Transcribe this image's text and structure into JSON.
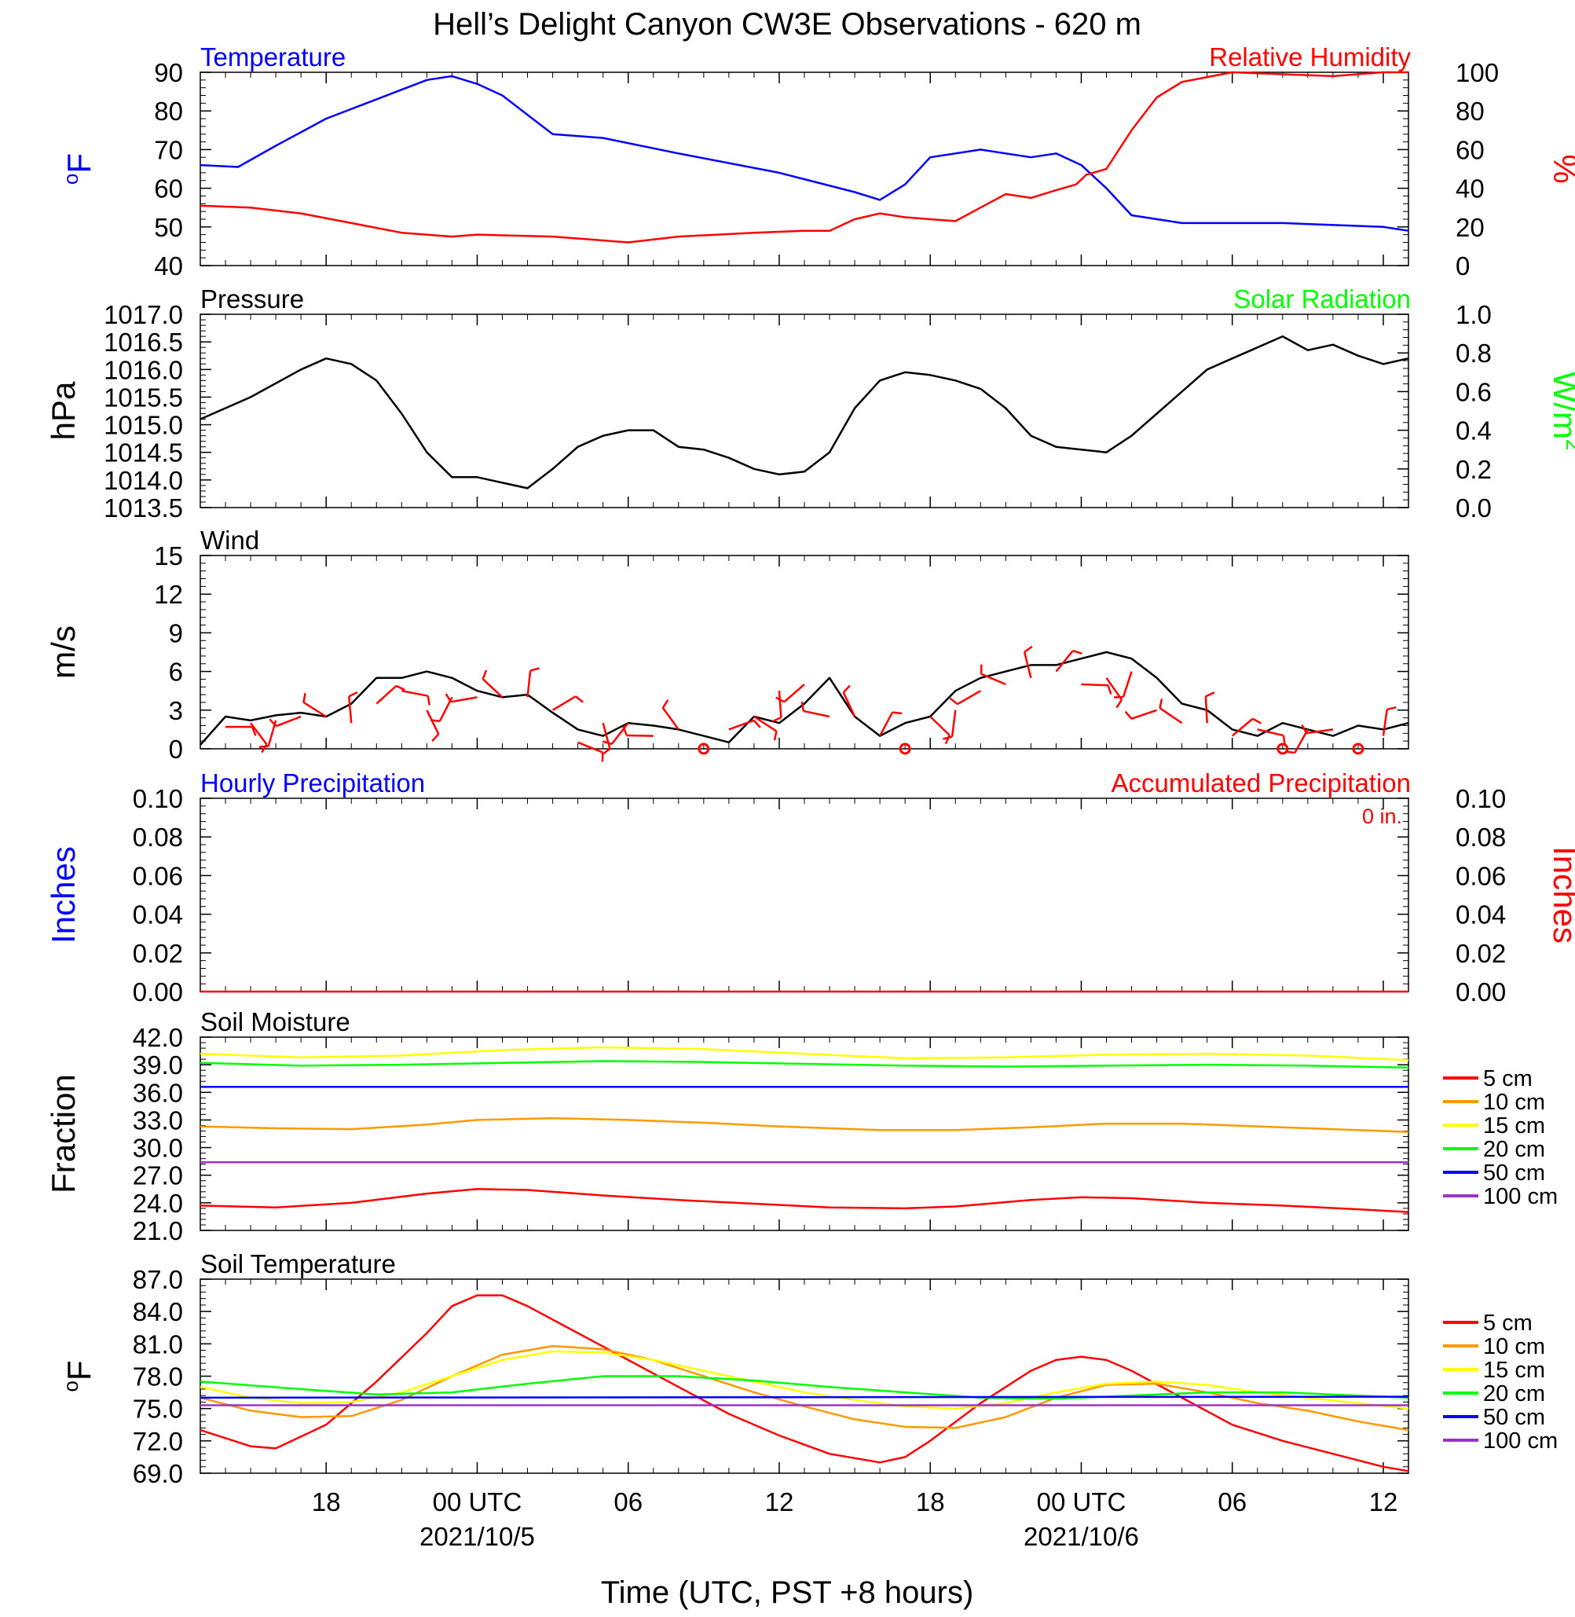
{
  "title": "Hell’s Delight Canyon CW3E Observations - 620 m",
  "xaxis": {
    "label": "Time (UTC, PST +8 hours)",
    "ticks": [
      {
        "h": 18,
        "label": "18"
      },
      {
        "h": 24,
        "label": "00 UTC",
        "date": "2021/10/5"
      },
      {
        "h": 30,
        "label": "06"
      },
      {
        "h": 36,
        "label": "12"
      },
      {
        "h": 42,
        "label": "18"
      },
      {
        "h": 48,
        "label": "00 UTC",
        "date": "2021/10/6"
      },
      {
        "h": 54,
        "label": "06"
      },
      {
        "h": 60,
        "label": "12"
      }
    ],
    "range_hours": [
      13,
      61
    ]
  },
  "chart_data": [
    {
      "panel": "temperature",
      "type": "line",
      "title_left": "Temperature",
      "title_right": "Relative Humidity",
      "ylabel_left": "oF",
      "ylabel_right": "%",
      "ylim_left": [
        40,
        90
      ],
      "ylim_right": [
        0,
        100
      ],
      "yticks_left": [
        "40",
        "50",
        "60",
        "70",
        "80",
        "90"
      ],
      "yticks_right": [
        "0",
        "20",
        "40",
        "60",
        "80",
        "100"
      ],
      "series": [
        {
          "name": "Temperature",
          "color": "#0000ff",
          "axis": "left",
          "x": [
            13,
            14.5,
            16,
            18,
            20,
            22,
            23,
            24,
            25,
            27,
            29,
            32,
            36,
            39,
            40,
            41,
            42,
            44,
            46,
            47,
            48,
            49,
            50,
            52,
            56,
            60,
            61
          ],
          "y": [
            66,
            65.5,
            71,
            78,
            83,
            88,
            89,
            87,
            84,
            74,
            73,
            69,
            64,
            59,
            57,
            61,
            68,
            70,
            68,
            69,
            66,
            60,
            53,
            51,
            51,
            50,
            49
          ]
        },
        {
          "name": "Relative Humidity",
          "color": "#ff0000",
          "axis": "right",
          "x": [
            13,
            15,
            17,
            19,
            21,
            23,
            24,
            27,
            30,
            32,
            35,
            37,
            38,
            39,
            40,
            41,
            42,
            43,
            44,
            45,
            46,
            47,
            47.8,
            48.2,
            49,
            50,
            51,
            52,
            54,
            56,
            58,
            60,
            61
          ],
          "y": [
            31,
            30,
            27,
            22,
            17,
            15,
            16,
            15,
            12,
            15,
            17,
            18,
            18,
            24,
            27,
            25,
            24,
            23,
            30,
            37,
            35,
            39,
            42,
            47,
            50,
            70,
            87,
            95,
            100,
            99,
            98,
            100,
            100
          ]
        }
      ]
    },
    {
      "panel": "pressure",
      "type": "line",
      "title_left": "Pressure",
      "title_right": "Solar Radiation",
      "ylabel_left": "hPa",
      "ylabel_right": "W/m2",
      "ylim_left": [
        1013.5,
        1017.0
      ],
      "ylim_right": [
        0.0,
        1.0
      ],
      "yticks_left": [
        "1013.5",
        "1014.0",
        "1014.5",
        "1015.0",
        "1015.5",
        "1016.0",
        "1016.5",
        "1017.0"
      ],
      "yticks_right": [
        "0.0",
        "0.2",
        "0.4",
        "0.6",
        "0.8",
        "1.0"
      ],
      "series": [
        {
          "name": "Pressure",
          "color": "#000000",
          "axis": "left",
          "x": [
            13,
            15,
            17,
            18,
            19,
            20,
            21,
            22,
            23,
            24,
            25,
            26,
            27,
            28,
            29,
            30,
            31,
            32,
            33,
            34,
            35,
            36,
            37,
            38,
            39,
            40,
            41,
            42,
            43,
            44,
            45,
            46,
            47,
            48,
            49,
            50,
            51,
            52,
            53,
            54,
            55,
            56,
            57,
            58,
            59,
            60,
            61
          ],
          "y": [
            1015.1,
            1015.5,
            1016.0,
            1016.2,
            1016.1,
            1015.8,
            1015.2,
            1014.5,
            1014.05,
            1014.05,
            1013.95,
            1013.85,
            1014.2,
            1014.6,
            1014.8,
            1014.9,
            1014.9,
            1014.6,
            1014.55,
            1014.4,
            1014.2,
            1014.1,
            1014.15,
            1014.5,
            1015.3,
            1015.8,
            1015.95,
            1015.9,
            1015.8,
            1015.65,
            1015.3,
            1014.8,
            1014.6,
            1014.55,
            1014.5,
            1014.8,
            1015.2,
            1015.6,
            1016.0,
            1016.2,
            1016.4,
            1016.6,
            1016.35,
            1016.45,
            1016.25,
            1016.1,
            1016.2
          ]
        }
      ]
    },
    {
      "panel": "wind",
      "type": "line",
      "title_left": "Wind",
      "ylabel_left": "m/s",
      "ylim_left": [
        0,
        15
      ],
      "yticks_left": [
        "0",
        "3",
        "6",
        "9",
        "12",
        "15"
      ],
      "barb_color": "#ff0000",
      "series": [
        {
          "name": "Wind Speed",
          "color": "#000000",
          "axis": "left",
          "x": [
            13,
            14,
            15,
            16,
            17,
            18,
            19,
            20,
            21,
            22,
            23,
            24,
            25,
            26,
            27,
            28,
            29,
            30,
            31,
            32,
            33,
            34,
            35,
            36,
            37,
            38,
            39,
            40,
            41,
            42,
            43,
            44,
            45,
            46,
            47,
            48,
            49,
            50,
            51,
            52,
            53,
            54,
            55,
            56,
            57,
            58,
            59,
            60,
            61
          ],
          "y": [
            0.3,
            2.5,
            2.2,
            2.6,
            2.8,
            2.5,
            3.5,
            5.5,
            5.5,
            6.0,
            5.5,
            4.5,
            4.0,
            4.2,
            2.8,
            1.5,
            1.0,
            2.0,
            1.8,
            1.5,
            1.0,
            0.5,
            2.5,
            2.0,
            3.5,
            5.5,
            2.5,
            1.0,
            2.0,
            2.5,
            4.5,
            5.5,
            6.0,
            6.5,
            6.5,
            7.0,
            7.5,
            7.0,
            5.5,
            3.5,
            3.0,
            1.5,
            1.0,
            2.0,
            1.5,
            1.0,
            1.8,
            1.5,
            2.0
          ]
        },
        {
          "name": "Wind Barbs",
          "color": "#ff0000",
          "axis": "left",
          "x": [
            14,
            15,
            16,
            17,
            18,
            19,
            20,
            21,
            22,
            23,
            24,
            25,
            26,
            27,
            28,
            29,
            30,
            31,
            32,
            33,
            34,
            35,
            36,
            37,
            38,
            39,
            40,
            41,
            42,
            43,
            44,
            45,
            46,
            47,
            48,
            49,
            50,
            51,
            52,
            53,
            54,
            55,
            56,
            57,
            58,
            59,
            60
          ],
          "y": [
            1.7,
            2.0,
            2.2,
            2.5,
            2.5,
            2.0,
            3.5,
            4.5,
            3.0,
            4.0,
            4.0,
            4.0,
            4.0,
            3.0,
            0.5,
            2.0,
            2.0,
            1.0,
            1.5,
            0,
            1.5,
            2.5,
            4.5,
            5.0,
            2.5,
            2.5,
            1.0,
            0,
            2.5,
            3.0,
            4.5,
            5.0,
            5.5,
            6.0,
            5.0,
            5.5,
            6.0,
            3.0,
            2.0,
            2.0,
            1.0,
            1.5,
            0,
            1.5,
            1.5,
            0,
            1.0
          ]
        }
      ]
    },
    {
      "panel": "precipitation",
      "type": "line",
      "title_left": "Hourly Precipitation",
      "title_right": "Accumulated Precipitation",
      "annotation": "0 in.",
      "ylabel_left": "Inches",
      "ylabel_right": "Inches",
      "ylim_left": [
        0.0,
        0.1
      ],
      "ylim_right": [
        0.0,
        0.1
      ],
      "yticks_left": [
        "0.00",
        "0.02",
        "0.04",
        "0.06",
        "0.08",
        "0.10"
      ],
      "yticks_right": [
        "0.00",
        "0.02",
        "0.04",
        "0.06",
        "0.08",
        "0.10"
      ],
      "series": [
        {
          "name": "Accumulated Precipitation",
          "color": "#ff0000",
          "axis": "right",
          "x": [
            13,
            61
          ],
          "y": [
            0,
            0
          ]
        }
      ]
    },
    {
      "panel": "soil_moisture",
      "type": "line",
      "title_left": "Soil Moisture",
      "ylabel_left": "Fraction",
      "ylim_left": [
        21.0,
        42.0
      ],
      "yticks_left": [
        "21.0",
        "24.0",
        "27.0",
        "30.0",
        "33.0",
        "36.0",
        "39.0",
        "42.0"
      ],
      "series": [
        {
          "name": "5 cm",
          "color": "#ff0000",
          "axis": "left",
          "x": [
            13,
            16,
            19,
            22,
            24,
            26,
            29,
            32,
            35,
            38,
            41,
            43,
            46,
            48,
            50,
            53,
            56,
            59,
            61
          ],
          "y": [
            23.7,
            23.5,
            24.0,
            25.0,
            25.5,
            25.4,
            24.8,
            24.3,
            23.9,
            23.5,
            23.4,
            23.6,
            24.3,
            24.6,
            24.5,
            24.0,
            23.7,
            23.3,
            23.0
          ]
        },
        {
          "name": "10 cm",
          "color": "#ff9900",
          "axis": "left",
          "x": [
            13,
            16,
            19,
            22,
            24,
            27,
            30,
            33,
            36,
            40,
            43,
            46,
            49,
            52,
            55,
            58,
            61
          ],
          "y": [
            32.3,
            32.1,
            32.0,
            32.5,
            33.0,
            33.2,
            33.0,
            32.7,
            32.3,
            31.9,
            31.9,
            32.2,
            32.6,
            32.6,
            32.3,
            32.0,
            31.7
          ]
        },
        {
          "name": "15 cm",
          "color": "#ffff00",
          "axis": "left",
          "x": [
            13,
            17,
            21,
            25,
            29,
            33,
            37,
            41,
            45,
            49,
            53,
            57,
            61
          ],
          "y": [
            40.2,
            39.8,
            40.0,
            40.6,
            40.9,
            40.7,
            40.2,
            39.7,
            39.8,
            40.1,
            40.2,
            40.0,
            39.5
          ]
        },
        {
          "name": "20 cm",
          "color": "#00ff00",
          "axis": "left",
          "x": [
            13,
            17,
            21,
            25,
            29,
            33,
            37,
            41,
            45,
            49,
            53,
            57,
            61
          ],
          "y": [
            39.2,
            38.9,
            39.0,
            39.2,
            39.4,
            39.3,
            39.1,
            38.9,
            38.8,
            38.9,
            39.0,
            38.9,
            38.7
          ]
        },
        {
          "name": "50 cm",
          "color": "#0000ff",
          "axis": "left",
          "x": [
            13,
            61
          ],
          "y": [
            36.6,
            36.6
          ]
        },
        {
          "name": "100 cm",
          "color": "#9933cc",
          "axis": "left",
          "x": [
            13,
            61
          ],
          "y": [
            28.4,
            28.4
          ]
        }
      ],
      "legend": [
        "5 cm",
        "10 cm",
        "15 cm",
        "20 cm",
        "50 cm",
        "100 cm"
      ]
    },
    {
      "panel": "soil_temperature",
      "type": "line",
      "title_left": "Soil Temperature",
      "ylabel_left": "oF",
      "ylim_left": [
        69.0,
        87.0
      ],
      "yticks_left": [
        "69.0",
        "72.0",
        "75.0",
        "78.0",
        "81.0",
        "84.0",
        "87.0"
      ],
      "series": [
        {
          "name": "5 cm",
          "color": "#ff0000",
          "axis": "left",
          "x": [
            13,
            15,
            16,
            18,
            20,
            22,
            23,
            24,
            25,
            26,
            28,
            30,
            32,
            34,
            36,
            38,
            40,
            41,
            42,
            44,
            46,
            47,
            48,
            49,
            50,
            52,
            54,
            56,
            58,
            60,
            61
          ],
          "y": [
            73.0,
            71.5,
            71.3,
            73.5,
            77.5,
            82.0,
            84.5,
            85.5,
            85.5,
            84.5,
            82.0,
            79.5,
            77.0,
            74.5,
            72.5,
            70.8,
            70.0,
            70.5,
            72.0,
            75.5,
            78.5,
            79.5,
            79.8,
            79.5,
            78.5,
            76.0,
            73.5,
            72.0,
            70.8,
            69.6,
            69.2
          ]
        },
        {
          "name": "10 cm",
          "color": "#ff9900",
          "axis": "left",
          "x": [
            13,
            15,
            17,
            19,
            21,
            23,
            25,
            27,
            29,
            31,
            33,
            35,
            37,
            39,
            41,
            43,
            45,
            47,
            49,
            51,
            53,
            55,
            57,
            59,
            61
          ],
          "y": [
            76.0,
            74.8,
            74.2,
            74.3,
            75.8,
            78.0,
            80.0,
            80.8,
            80.5,
            79.5,
            78.0,
            76.5,
            75.2,
            74.0,
            73.3,
            73.2,
            74.2,
            76.0,
            77.2,
            77.3,
            76.5,
            75.5,
            74.8,
            73.8,
            73.0
          ]
        },
        {
          "name": "15 cm",
          "color": "#ffff00",
          "axis": "left",
          "x": [
            13,
            15,
            17,
            19,
            21,
            23,
            25,
            27,
            29,
            31,
            33,
            35,
            37,
            39,
            41,
            43,
            45,
            47,
            49,
            51,
            53,
            55,
            57,
            59,
            61
          ],
          "y": [
            77.0,
            76.0,
            75.5,
            75.6,
            76.5,
            78.0,
            79.5,
            80.3,
            80.2,
            79.5,
            78.5,
            77.5,
            76.5,
            75.8,
            75.2,
            75.0,
            75.5,
            76.5,
            77.3,
            77.5,
            77.2,
            76.5,
            76.0,
            75.5,
            75.0
          ]
        },
        {
          "name": "20 cm",
          "color": "#00ff00",
          "axis": "left",
          "x": [
            13,
            17,
            20,
            23,
            26,
            29,
            32,
            35,
            38,
            41,
            44,
            47,
            50,
            53,
            56,
            59,
            61
          ],
          "y": [
            77.5,
            76.8,
            76.3,
            76.5,
            77.3,
            78.0,
            78.0,
            77.6,
            77.0,
            76.5,
            76.0,
            75.9,
            76.2,
            76.5,
            76.5,
            76.2,
            76.0
          ]
        },
        {
          "name": "50 cm",
          "color": "#0000ff",
          "axis": "left",
          "x": [
            13,
            61
          ],
          "y": [
            76.0,
            76.1
          ]
        },
        {
          "name": "100 cm",
          "color": "#9933cc",
          "axis": "left",
          "x": [
            13,
            61
          ],
          "y": [
            75.3,
            75.3
          ]
        }
      ],
      "legend": [
        "5 cm",
        "10 cm",
        "15 cm",
        "20 cm",
        "50 cm",
        "100 cm"
      ]
    }
  ]
}
